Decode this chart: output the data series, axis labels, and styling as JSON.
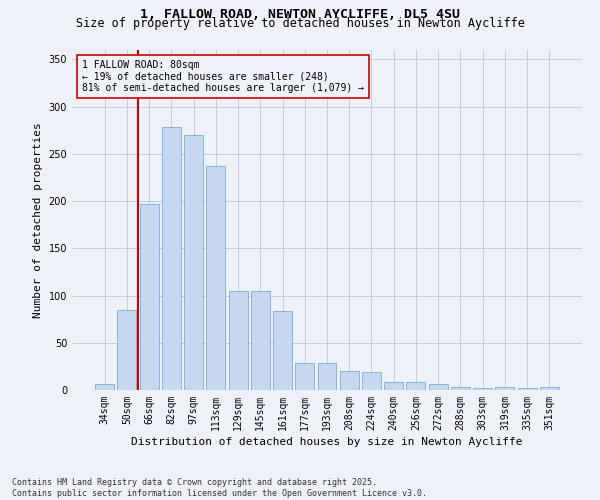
{
  "title1": "1, FALLOW ROAD, NEWTON AYCLIFFE, DL5 4SU",
  "title2": "Size of property relative to detached houses in Newton Aycliffe",
  "xlabel": "Distribution of detached houses by size in Newton Aycliffe",
  "ylabel": "Number of detached properties",
  "categories": [
    "34sqm",
    "50sqm",
    "66sqm",
    "82sqm",
    "97sqm",
    "113sqm",
    "129sqm",
    "145sqm",
    "161sqm",
    "177sqm",
    "193sqm",
    "208sqm",
    "224sqm",
    "240sqm",
    "256sqm",
    "272sqm",
    "288sqm",
    "303sqm",
    "319sqm",
    "335sqm",
    "351sqm"
  ],
  "values": [
    6,
    85,
    197,
    278,
    270,
    237,
    105,
    105,
    84,
    29,
    29,
    20,
    19,
    9,
    8,
    6,
    3,
    2,
    3,
    2,
    3
  ],
  "bar_color": "#c5d8f0",
  "bar_edge_color": "#7bafd4",
  "vline_color": "#cc0000",
  "vline_x_index": 2,
  "annotation_text": "1 FALLOW ROAD: 80sqm\n← 19% of detached houses are smaller (248)\n81% of semi-detached houses are larger (1,079) →",
  "annotation_box_color": "#cc0000",
  "ylim": [
    0,
    360
  ],
  "yticks": [
    0,
    50,
    100,
    150,
    200,
    250,
    300,
    350
  ],
  "footer": "Contains HM Land Registry data © Crown copyright and database right 2025.\nContains public sector information licensed under the Open Government Licence v3.0.",
  "bg_color": "#eef2f8",
  "title_fontsize": 9.5,
  "subtitle_fontsize": 8.5,
  "tick_fontsize": 7,
  "axis_label_fontsize": 8,
  "annotation_fontsize": 7,
  "footer_fontsize": 6
}
